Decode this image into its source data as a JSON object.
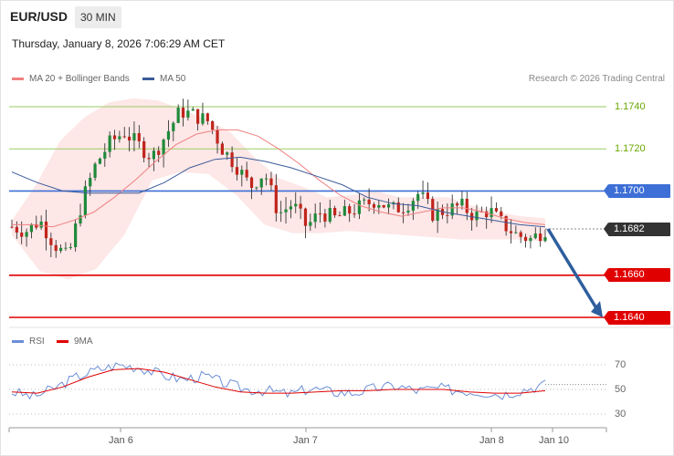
{
  "header": {
    "pair": "EUR/USD",
    "timeframe": "30 MIN",
    "datetime": "Thursday, January 8, 2026 7:06:29 AM CET"
  },
  "legend": {
    "main_item1": "MA 20 + Bollinger Bands",
    "main_item2": "MA 50",
    "rsi_item1": "RSI",
    "rsi_item2": "9MA",
    "research": "Research © 2026 Trading Central"
  },
  "colors": {
    "ma20": "#f08080",
    "ma50": "#3b5b9a",
    "band_fill": "#fde3e3",
    "resistance_green": "#9acd60",
    "pivot_blue": "#3d6fd6",
    "support_red": "#e00000",
    "current": "#333333",
    "up_candle": "#1e8a3a",
    "down_candle": "#c0241b",
    "forecast_arrow": "#2e5e9e",
    "rsi_line": "#6b8fd6",
    "rsi_ma": "#e00000"
  },
  "levels": [
    {
      "value": 1.174,
      "label": "1.1740",
      "kind": "resistance"
    },
    {
      "value": 1.172,
      "label": "1.1720",
      "kind": "resistance"
    },
    {
      "value": 1.17,
      "label": "1.1700",
      "kind": "pivot"
    },
    {
      "value": 1.1682,
      "label": "1.1682",
      "kind": "current"
    },
    {
      "value": 1.166,
      "label": "1.1660",
      "kind": "support"
    },
    {
      "value": 1.164,
      "label": "1.1640",
      "kind": "support"
    }
  ],
  "rsi_levels": [
    "70",
    "50",
    "30"
  ],
  "x_labels": [
    "Jan 6",
    "Jan 7",
    "Jan 8",
    "Jan 10"
  ],
  "chart_data": {
    "type": "candlestick",
    "ylim": [
      1.1636,
      1.1749
    ],
    "close_path": [
      1.1683,
      1.1681,
      1.1686,
      1.1675,
      1.1668,
      1.1695,
      1.1713,
      1.1723,
      1.1728,
      1.1722,
      1.1716,
      1.1727,
      1.1738,
      1.1736,
      1.1733,
      1.172,
      1.1712,
      1.1702,
      1.1709,
      1.1689,
      1.1694,
      1.1683,
      1.169,
      1.1687,
      1.169,
      1.1693,
      1.1696,
      1.1691,
      1.1693,
      1.1699,
      1.1689,
      1.1691,
      1.1693,
      1.1688,
      1.1691,
      1.1684,
      1.1679,
      1.1677,
      1.1682
    ],
    "forecast": [
      1.1682,
      1.164
    ],
    "ma20": [
      1.1684,
      1.1684,
      1.1683,
      1.1686,
      1.169,
      1.1697,
      1.1705,
      1.1714,
      1.1722,
      1.1727,
      1.1729,
      1.1729,
      1.1726,
      1.172,
      1.1713,
      1.1705,
      1.1698,
      1.1693,
      1.169,
      1.1688,
      1.169,
      1.1692,
      1.1692,
      1.169,
      1.1687,
      1.1685,
      1.1684
    ],
    "ma50": [
      1.1709,
      1.1704,
      1.17,
      1.1699,
      1.1699,
      1.1699,
      1.1704,
      1.1711,
      1.1715,
      1.1716,
      1.1714,
      1.1711,
      1.1707,
      1.1703,
      1.1697,
      1.1694,
      1.1693,
      1.169,
      1.1688,
      1.1686,
      1.1684,
      1.1683
    ],
    "bb_upper": [
      1.1686,
      1.1703,
      1.1724,
      1.1735,
      1.1742,
      1.1744,
      1.1743,
      1.1739,
      1.1734,
      1.1728,
      1.1716,
      1.1706,
      1.1702,
      1.1697,
      1.1698,
      1.17,
      1.1697,
      1.1697,
      1.1697,
      1.1693,
      1.169,
      1.1688,
      1.1687
    ],
    "bb_lower": [
      1.1679,
      1.1662,
      1.1658,
      1.1663,
      1.1679,
      1.1705,
      1.1709,
      1.1708,
      1.1698,
      1.1684,
      1.168,
      1.168,
      1.1681,
      1.168,
      1.1679,
      1.1678,
      1.1677,
      1.1677,
      1.1677,
      1.1676
    ],
    "rsi": [
      48,
      44,
      51,
      60,
      66,
      70,
      68,
      62,
      58,
      61,
      55,
      50,
      49,
      46,
      51,
      48,
      47,
      51,
      53,
      49,
      51,
      49,
      48,
      46,
      50,
      54
    ],
    "rsi_ma": [
      48,
      47,
      52,
      60,
      66,
      67,
      64,
      58,
      52,
      48,
      47,
      47,
      48,
      49,
      49,
      50,
      50,
      50,
      48,
      47,
      47,
      49
    ]
  }
}
